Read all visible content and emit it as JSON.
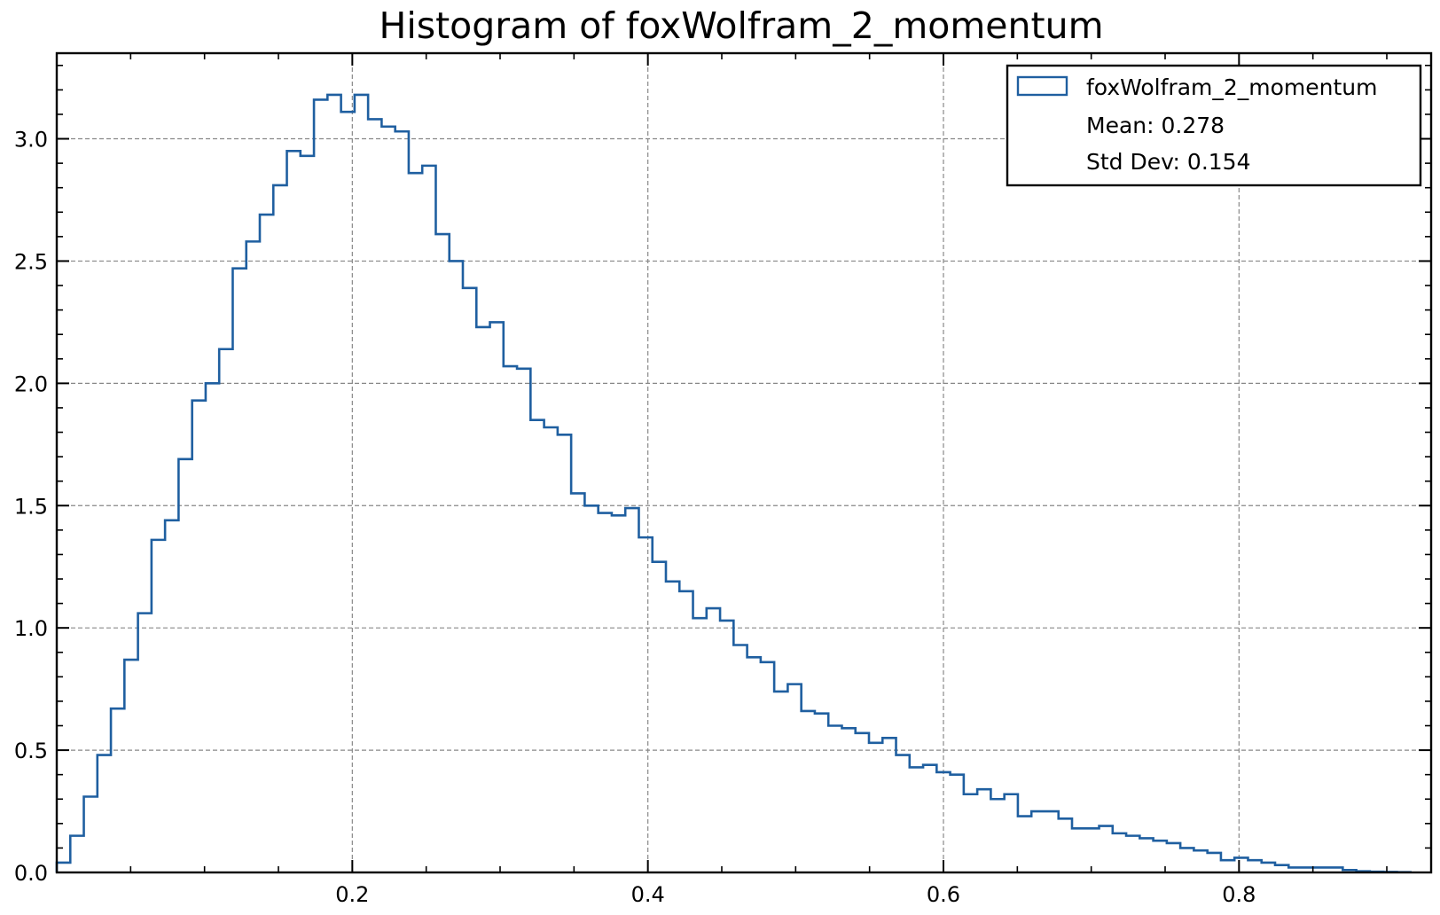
{
  "chart_data": {
    "type": "histogram",
    "title": "Histogram of foxWolfram_2_momentum",
    "xlabel": "",
    "ylabel": "",
    "xlim": [
      0.0,
      0.93
    ],
    "ylim": [
      0.0,
      3.35
    ],
    "x_ticks": [
      {
        "value": 0.2,
        "label": "0.2"
      },
      {
        "value": 0.4,
        "label": "0.4"
      },
      {
        "value": 0.6,
        "label": "0.6"
      },
      {
        "value": 0.8,
        "label": "0.8"
      }
    ],
    "y_ticks": [
      {
        "value": 0.0,
        "label": "0.0"
      },
      {
        "value": 0.5,
        "label": "0.5"
      },
      {
        "value": 1.0,
        "label": "1.0"
      },
      {
        "value": 1.5,
        "label": "1.5"
      },
      {
        "value": 2.0,
        "label": "2.0"
      },
      {
        "value": 2.5,
        "label": "2.5"
      },
      {
        "value": 3.0,
        "label": "3.0"
      }
    ],
    "grid": true,
    "legend_position": "top-right",
    "series": [
      {
        "name": "foxWolfram_2_momentum",
        "color": "#1f5fa0",
        "bin_start": 0.0,
        "bin_width": 0.00916,
        "values": [
          0.04,
          0.15,
          0.31,
          0.48,
          0.67,
          0.87,
          1.06,
          1.36,
          1.44,
          1.69,
          1.93,
          2.0,
          2.14,
          2.47,
          2.58,
          2.69,
          2.81,
          2.95,
          2.93,
          3.16,
          3.18,
          3.11,
          3.18,
          3.08,
          3.05,
          3.03,
          2.86,
          2.89,
          2.61,
          2.5,
          2.39,
          2.23,
          2.25,
          2.07,
          2.06,
          1.85,
          1.82,
          1.79,
          1.55,
          1.5,
          1.47,
          1.46,
          1.49,
          1.37,
          1.27,
          1.19,
          1.15,
          1.04,
          1.08,
          1.03,
          0.93,
          0.88,
          0.86,
          0.74,
          0.77,
          0.66,
          0.65,
          0.6,
          0.59,
          0.57,
          0.53,
          0.55,
          0.48,
          0.43,
          0.44,
          0.41,
          0.4,
          0.32,
          0.34,
          0.3,
          0.32,
          0.23,
          0.25,
          0.25,
          0.22,
          0.18,
          0.18,
          0.19,
          0.16,
          0.15,
          0.14,
          0.13,
          0.12,
          0.1,
          0.09,
          0.08,
          0.05,
          0.06,
          0.05,
          0.04,
          0.03,
          0.02,
          0.02,
          0.02,
          0.02,
          0.01,
          0.005,
          0.003,
          0.002,
          0.001
        ]
      }
    ],
    "legend": {
      "series_label": "foxWolfram_2_momentum",
      "mean_text": "Mean: 0.278",
      "std_text": "Std Dev: 0.154"
    }
  }
}
